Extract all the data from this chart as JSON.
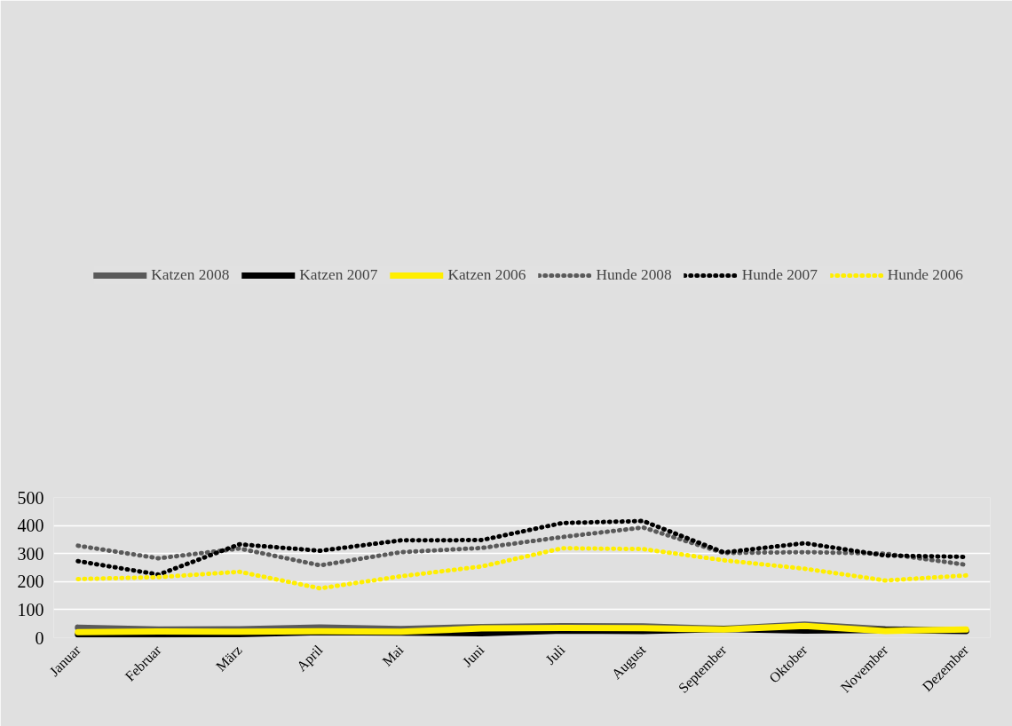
{
  "chart_data": {
    "type": "line",
    "categories": [
      "Januar",
      "Februar",
      "März",
      "April",
      "Mai",
      "Juni",
      "Juli",
      "August",
      "September",
      "Oktober",
      "November",
      "Dezember"
    ],
    "ylim": [
      0,
      500
    ],
    "yticks": [
      0,
      100,
      200,
      300,
      400,
      500
    ],
    "grid": "y",
    "legend": "top",
    "marker": "none",
    "series": [
      {
        "name": "Katzen 2008",
        "color": "#5a5a5a",
        "line_style": "solid",
        "values": [
          36,
          29,
          30,
          36,
          31,
          38,
          41,
          40,
          32,
          47,
          30,
          25
        ]
      },
      {
        "name": "Katzen 2007",
        "color": "#000000",
        "line_style": "solid",
        "values": [
          12,
          12,
          13,
          20,
          18,
          16,
          25,
          24,
          31,
          25,
          28,
          24
        ]
      },
      {
        "name": "Katzen 2006",
        "color": "#ffee00",
        "line_style": "solid",
        "values": [
          20,
          22,
          21,
          23,
          21,
          33,
          35,
          34,
          29,
          42,
          24,
          29
        ]
      },
      {
        "name": "Hunde 2008",
        "color": "#5a5a5a",
        "line_style": "dotted",
        "values": [
          328,
          283,
          318,
          258,
          305,
          320,
          359,
          393,
          302,
          305,
          300,
          260
        ]
      },
      {
        "name": "Hunde 2007",
        "color": "#000000",
        "line_style": "dotted",
        "values": [
          273,
          225,
          333,
          310,
          347,
          348,
          409,
          416,
          304,
          337,
          293,
          288
        ]
      },
      {
        "name": "Hunde 2006",
        "color": "#ffee00",
        "line_style": "dotted",
        "values": [
          209,
          216,
          235,
          176,
          219,
          254,
          319,
          316,
          276,
          246,
          204,
          222
        ]
      }
    ]
  }
}
